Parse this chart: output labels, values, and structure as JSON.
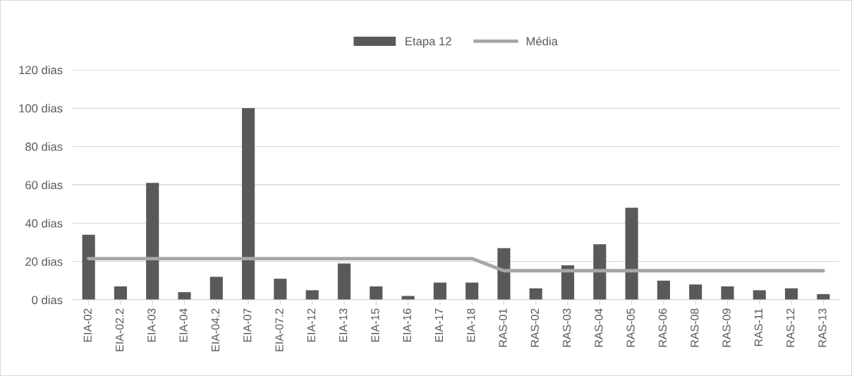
{
  "chart_data": {
    "type": "bar",
    "categories": [
      "EIA-02",
      "EIA-02.2",
      "EIA-03",
      "EIA-04",
      "EIA-04.2",
      "EIA-07",
      "EIA-07.2",
      "EIA-12",
      "EIA-13",
      "EIA-15",
      "EIA-16",
      "EIA-17",
      "EIA-18",
      "RAS-01",
      "RAS-02",
      "RAS-03",
      "RAS-04",
      "RAS-05",
      "RAS-06",
      "RAS-08",
      "RAS-09",
      "RAS-11",
      "RAS-12",
      "RAS-13"
    ],
    "series": [
      {
        "name": "Etapa 12",
        "color": "#595959",
        "values": [
          34,
          7,
          61,
          4,
          12,
          100,
          11,
          5,
          19,
          7,
          2,
          9,
          9,
          27,
          6,
          18,
          29,
          48,
          10,
          8,
          7,
          5,
          6,
          3
        ]
      },
      {
        "name": "Média",
        "type": "line",
        "color": "#a6a6a6",
        "values": [
          21.5,
          21.5,
          21.5,
          21.5,
          21.5,
          21.5,
          21.5,
          21.5,
          21.5,
          21.5,
          21.5,
          21.5,
          21.5,
          15.2,
          15.2,
          15.2,
          15.2,
          15.2,
          15.2,
          15.2,
          15.2,
          15.2,
          15.2,
          15.2
        ]
      }
    ],
    "ylim": [
      0,
      120
    ],
    "yticks": [
      {
        "value": 0,
        "label": "0 dias"
      },
      {
        "value": 20,
        "label": "20 dias"
      },
      {
        "value": 40,
        "label": "40 dias"
      },
      {
        "value": 60,
        "label": "60 dias"
      },
      {
        "value": 80,
        "label": "80 dias"
      },
      {
        "value": 100,
        "label": "100 dias"
      },
      {
        "value": 120,
        "label": "120 dias"
      }
    ],
    "grid": "y",
    "legend": "top",
    "marker": "none",
    "line_style": "solid"
  }
}
